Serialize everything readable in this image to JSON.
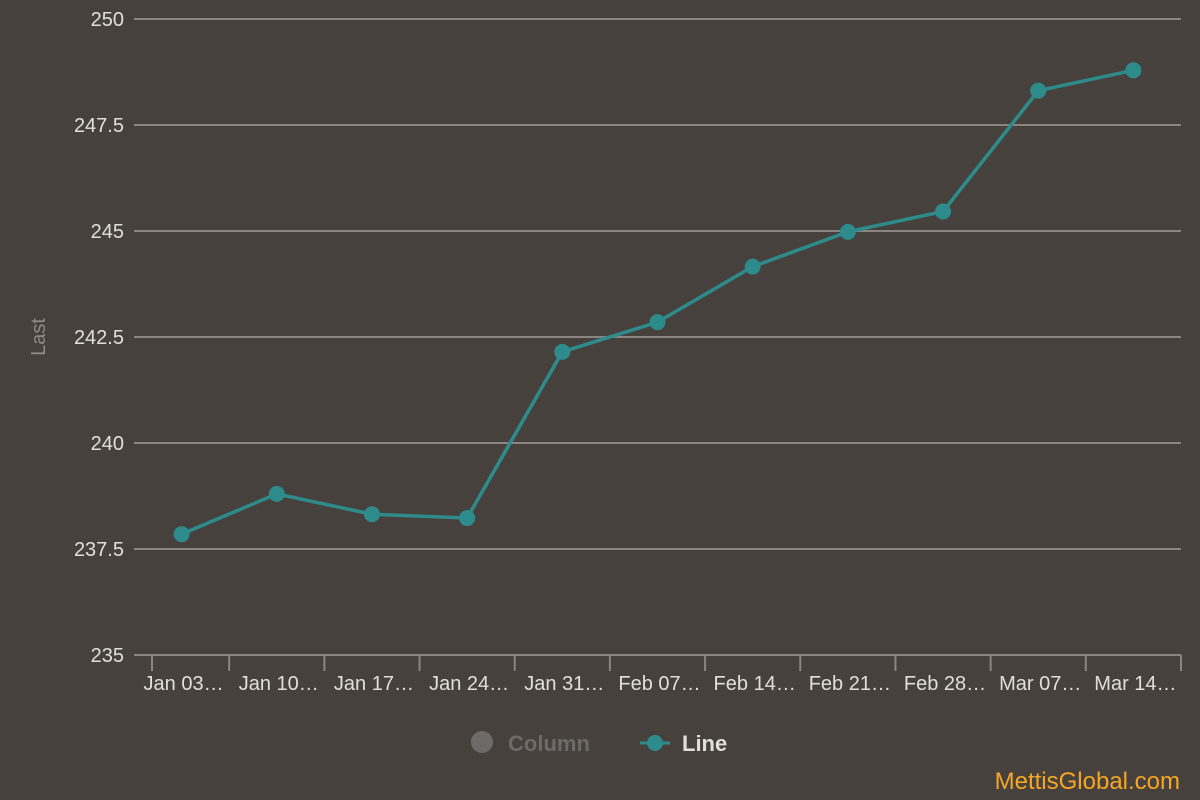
{
  "chart_data": {
    "type": "line",
    "categories": [
      "Jan 03…",
      "Jan 10…",
      "Jan 17…",
      "Jan 24…",
      "Jan 31…",
      "Feb 07…",
      "Feb 14…",
      "Feb 21…",
      "Feb 28…",
      "Mar 07…",
      "Mar 14…"
    ],
    "series": [
      {
        "name": "Line",
        "values": [
          237.85,
          238.8,
          238.32,
          238.23,
          242.15,
          242.85,
          244.16,
          244.98,
          245.46,
          248.31,
          248.79
        ],
        "color": "#2e8b8b"
      }
    ],
    "ylabel": "Last",
    "ylim": [
      235,
      250
    ],
    "yticks": [
      235,
      237.5,
      240,
      242.5,
      245,
      247.5,
      250
    ],
    "ytick_labels": [
      "235",
      "237.5",
      "240",
      "242.5",
      "245",
      "247.5",
      "250"
    ],
    "grid": true,
    "legend": {
      "placement": "bottom-center",
      "items": [
        {
          "label": "Column",
          "color": "#6e6a67",
          "enabled": false
        },
        {
          "label": "Line",
          "color": "#2e8b8b",
          "enabled": true
        }
      ]
    }
  },
  "watermark": "MettisGlobal.com",
  "colors": {
    "background": "#46413d",
    "grid": "#8a8581",
    "tick_text": "#e2dfdb",
    "legend_disabled": "#6e6a67",
    "legend_enabled": "#e2dfdb",
    "watermark": "#f5a623"
  }
}
